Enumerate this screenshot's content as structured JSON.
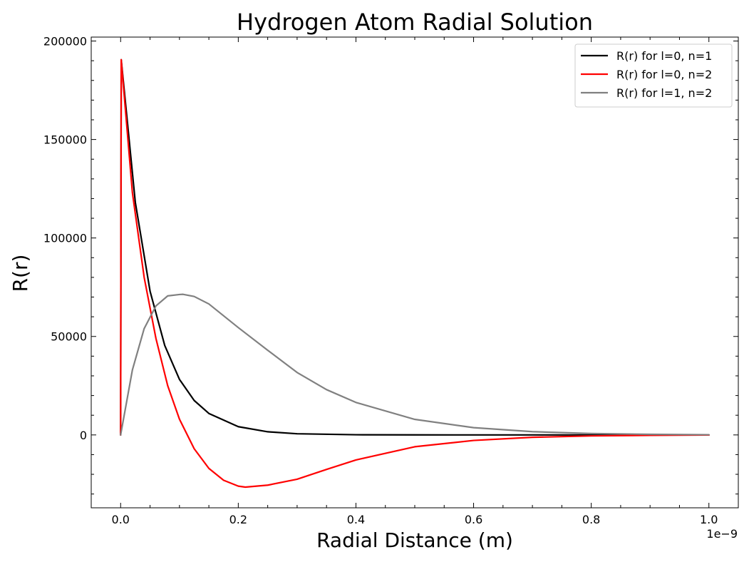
{
  "chart_data": {
    "type": "line",
    "title": "Hydrogen Atom Radial Solution",
    "xlabel": "Radial Distance (m)",
    "ylabel": "R(r)",
    "x_offset_label": "1e−9",
    "xlim": [
      -0.05,
      1.05
    ],
    "ylim": [
      -37000,
      202000
    ],
    "x_ticks": [
      0.0,
      0.2,
      0.4,
      0.6,
      0.8,
      1.0
    ],
    "x_tick_labels": [
      "0.0",
      "0.2",
      "0.4",
      "0.6",
      "0.8",
      "1.0"
    ],
    "y_ticks": [
      0,
      50000,
      100000,
      150000,
      200000
    ],
    "y_tick_labels": [
      "0",
      "50000",
      "100000",
      "150000",
      "200000"
    ],
    "legend_position": "top-right",
    "grid": false,
    "series": [
      {
        "name": "R(r) for l=0, n=1",
        "color": "#000000",
        "x": [
          0.0,
          0.001,
          0.025,
          0.05,
          0.075,
          0.1,
          0.125,
          0.15,
          0.2,
          0.25,
          0.3,
          0.4,
          0.5,
          0.6,
          0.8,
          1.0
        ],
        "y": [
          0,
          190500,
          118000,
          73000,
          45400,
          28200,
          17500,
          10900,
          4200,
          1600,
          600,
          90,
          15,
          2,
          0,
          0
        ]
      },
      {
        "name": "R(r) for l=0, n=2",
        "color": "#ff0000",
        "x": [
          0.0,
          0.001,
          0.02,
          0.04,
          0.06,
          0.08,
          0.1,
          0.125,
          0.15,
          0.175,
          0.2,
          0.212,
          0.25,
          0.3,
          0.35,
          0.4,
          0.5,
          0.6,
          0.7,
          0.8,
          0.9,
          1.0
        ],
        "y": [
          0,
          190500,
          123000,
          80000,
          49000,
          25000,
          8000,
          -7000,
          -17000,
          -23000,
          -26000,
          -26500,
          -25500,
          -22500,
          -17500,
          -12700,
          -6000,
          -2800,
          -1200,
          -500,
          -200,
          -50
        ]
      },
      {
        "name": "R(r) for l=1, n=2",
        "color": "#808080",
        "x": [
          0.0,
          0.02,
          0.04,
          0.06,
          0.08,
          0.1,
          0.106,
          0.125,
          0.15,
          0.2,
          0.25,
          0.3,
          0.35,
          0.4,
          0.5,
          0.6,
          0.7,
          0.8,
          0.9,
          1.0
        ],
        "y": [
          0,
          33000,
          54000,
          65500,
          70600,
          71300,
          71400,
          70300,
          66500,
          54500,
          43000,
          31700,
          23000,
          16500,
          7900,
          3700,
          1650,
          700,
          300,
          100
        ]
      }
    ]
  }
}
